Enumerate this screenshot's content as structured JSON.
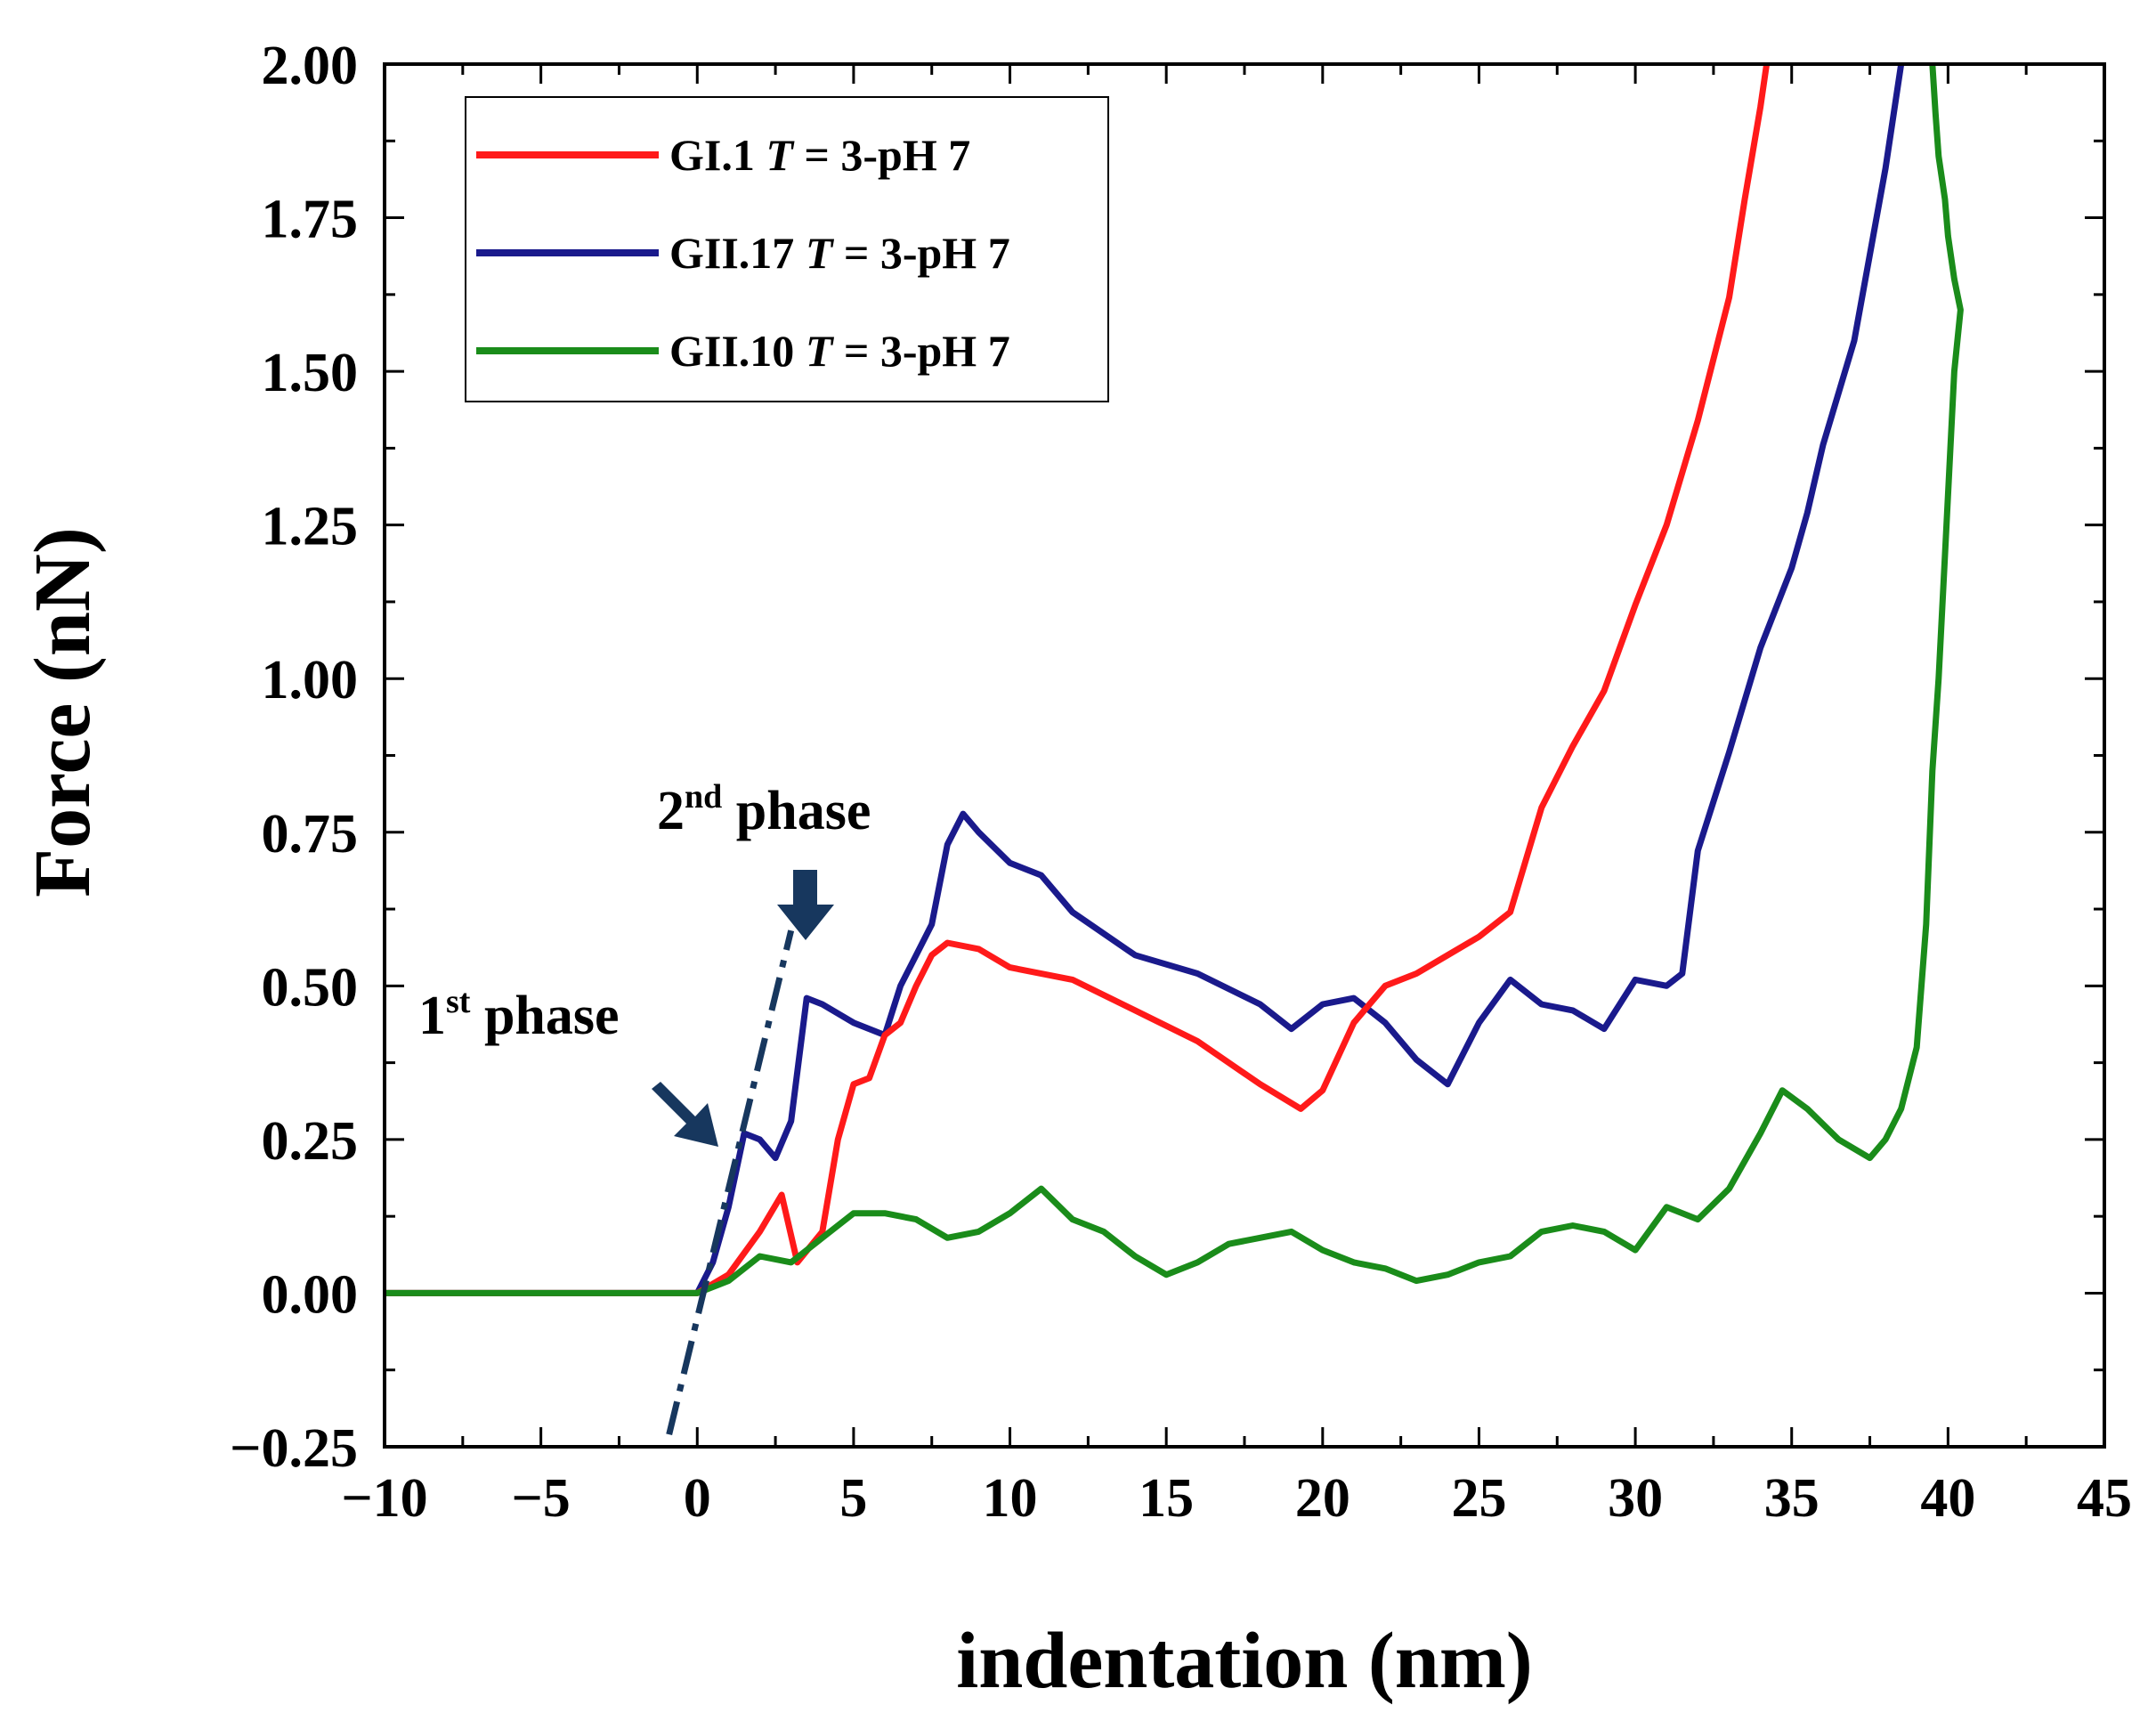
{
  "chart_data": {
    "type": "line",
    "xlabel": "indentation (nm)",
    "ylabel": "Force (nN)",
    "xlim": [
      -10,
      45
    ],
    "ylim": [
      -0.25,
      2.0
    ],
    "x_ticks": [
      -10,
      -5,
      0,
      5,
      10,
      15,
      20,
      25,
      30,
      35,
      40,
      45
    ],
    "x_tick_labels": [
      "−10",
      "−5",
      "0",
      "5",
      "10",
      "15",
      "20",
      "25",
      "30",
      "35",
      "40",
      "45"
    ],
    "y_ticks": [
      -0.25,
      0.0,
      0.25,
      0.5,
      0.75,
      1.0,
      1.25,
      1.5,
      1.75,
      2.0
    ],
    "y_tick_labels": [
      "−0.25",
      "0.00",
      "0.25",
      "0.50",
      "0.75",
      "1.00",
      "1.25",
      "1.50",
      "1.75",
      "2.00"
    ],
    "legend_position": "top-left",
    "series": [
      {
        "name": "GI.1",
        "label_suffix": " = 3-pH 7",
        "color": "#ff1a1a",
        "x": [
          -10,
          -5,
          0,
          1,
          2,
          2.7,
          3.2,
          4,
          4.5,
          5,
          5.5,
          6,
          6.5,
          7,
          7.5,
          8,
          9,
          10,
          12,
          14,
          16,
          18,
          19.3,
          20,
          21,
          22,
          23,
          24,
          25,
          26,
          27,
          28,
          29,
          30,
          31,
          32,
          33,
          33.5,
          34,
          34.2
        ],
        "y": [
          0.0,
          0.0,
          0.0,
          0.03,
          0.1,
          0.16,
          0.05,
          0.1,
          0.25,
          0.34,
          0.35,
          0.42,
          0.44,
          0.5,
          0.55,
          0.57,
          0.56,
          0.53,
          0.51,
          0.46,
          0.41,
          0.34,
          0.3,
          0.33,
          0.44,
          0.5,
          0.52,
          0.55,
          0.58,
          0.62,
          0.79,
          0.89,
          0.98,
          1.12,
          1.25,
          1.42,
          1.62,
          1.78,
          1.93,
          2.0
        ]
      },
      {
        "name": "GII.17",
        "label_suffix": " = 3-pH 7",
        "color": "#1a1a8c",
        "x": [
          -10,
          -5,
          0,
          0.5,
          1,
          1.5,
          2,
          2.5,
          3,
          3.5,
          4,
          5,
          6,
          6.5,
          7,
          7.5,
          8,
          8.5,
          9,
          10,
          11,
          12,
          14,
          16,
          18,
          19,
          20,
          21,
          22,
          23,
          24,
          25,
          26,
          27,
          28,
          29,
          30,
          31,
          31.5,
          32,
          33,
          34,
          35,
          35.5,
          36,
          37,
          38,
          38.5
        ],
        "y": [
          0.0,
          0.0,
          0.0,
          0.05,
          0.14,
          0.26,
          0.25,
          0.22,
          0.28,
          0.48,
          0.47,
          0.44,
          0.42,
          0.5,
          0.55,
          0.6,
          0.73,
          0.78,
          0.75,
          0.7,
          0.68,
          0.62,
          0.55,
          0.52,
          0.47,
          0.43,
          0.47,
          0.48,
          0.44,
          0.38,
          0.34,
          0.44,
          0.51,
          0.47,
          0.46,
          0.43,
          0.51,
          0.5,
          0.52,
          0.72,
          0.88,
          1.05,
          1.18,
          1.27,
          1.38,
          1.55,
          1.83,
          2.0
        ]
      },
      {
        "name": "GII.10",
        "label_suffix": " = 3-pH 7",
        "color": "#1a8c1a",
        "x": [
          -10,
          -5,
          0,
          1,
          2,
          3,
          4,
          5,
          6,
          7,
          8,
          9,
          10,
          11,
          12,
          13,
          14,
          15,
          16,
          17,
          18,
          19,
          20,
          21,
          22,
          23,
          24,
          25,
          26,
          27,
          28,
          29,
          30,
          31,
          32,
          33,
          34,
          34.7,
          35.5,
          36.5,
          37.5,
          38,
          38.5,
          39,
          39.3,
          39.5,
          39.7,
          39.9,
          40.2,
          40.4,
          40.2,
          40.0,
          39.9,
          39.7,
          39.6,
          39.5
        ],
        "y": [
          0.0,
          0.0,
          0.0,
          0.02,
          0.06,
          0.05,
          0.09,
          0.13,
          0.13,
          0.12,
          0.09,
          0.1,
          0.13,
          0.17,
          0.12,
          0.1,
          0.06,
          0.03,
          0.05,
          0.08,
          0.09,
          0.1,
          0.07,
          0.05,
          0.04,
          0.02,
          0.03,
          0.05,
          0.06,
          0.1,
          0.11,
          0.1,
          0.07,
          0.14,
          0.12,
          0.17,
          0.26,
          0.33,
          0.3,
          0.25,
          0.22,
          0.25,
          0.3,
          0.4,
          0.6,
          0.85,
          1.0,
          1.2,
          1.5,
          1.6,
          1.65,
          1.72,
          1.78,
          1.85,
          1.92,
          2.0
        ]
      }
    ],
    "annotations": [
      {
        "text": "1",
        "sup": "st",
        "rest": " phase"
      },
      {
        "text": "2",
        "sup": "nd",
        "rest": " phase"
      }
    ],
    "guide_line": {
      "x": [
        -0.9,
        3.0
      ],
      "y": [
        -0.23,
        0.59
      ],
      "color": "#17375e"
    }
  }
}
